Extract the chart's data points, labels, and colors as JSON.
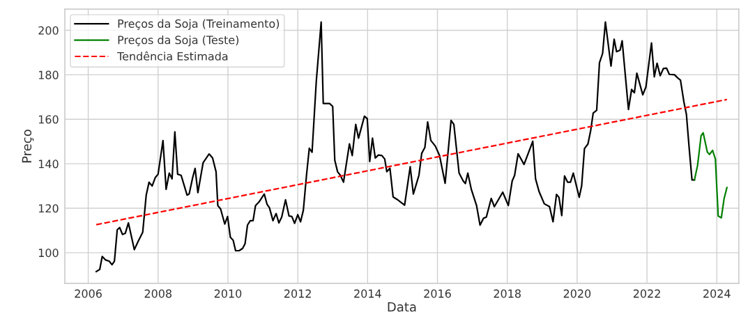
{
  "chart_data": {
    "type": "line",
    "xlabel": "Data",
    "ylabel": "Preço",
    "xlim": [
      2005.33,
      2024.63
    ],
    "ylim": [
      86.2,
      209.5
    ],
    "xticks": [
      2006,
      2008,
      2010,
      2012,
      2014,
      2016,
      2018,
      2020,
      2022,
      2024
    ],
    "yticks": [
      100,
      120,
      140,
      160,
      180,
      200
    ],
    "grid": true,
    "legend": "top left",
    "series": [
      {
        "name": "Preços da Soja (Treinamento)",
        "color": "#000000",
        "line_style": "solid",
        "x": [
          2006.23,
          2006.33,
          2006.4,
          2006.5,
          2006.6,
          2006.68,
          2006.75,
          2006.83,
          2006.9,
          2006.98,
          2007.06,
          2007.15,
          2007.32,
          2007.43,
          2007.56,
          2007.66,
          2007.74,
          2007.83,
          2007.92,
          2008.0,
          2008.14,
          2008.23,
          2008.32,
          2008.4,
          2008.48,
          2008.56,
          2008.66,
          2008.83,
          2008.89,
          2008.99,
          2009.06,
          2009.14,
          2009.29,
          2009.46,
          2009.56,
          2009.66,
          2009.71,
          2009.79,
          2009.91,
          2009.99,
          2010.07,
          2010.15,
          2010.22,
          2010.32,
          2010.42,
          2010.49,
          2010.56,
          2010.64,
          2010.72,
          2010.79,
          2010.89,
          2011.04,
          2011.12,
          2011.19,
          2011.29,
          2011.38,
          2011.46,
          2011.54,
          2011.65,
          2011.75,
          2011.83,
          2011.91,
          2012.0,
          2012.08,
          2012.16,
          2012.25,
          2012.33,
          2012.41,
          2012.53,
          2012.67,
          2012.73,
          2012.91,
          2013.0,
          2013.06,
          2013.14,
          2013.22,
          2013.31,
          2013.48,
          2013.56,
          2013.66,
          2013.74,
          2013.91,
          2013.99,
          2014.06,
          2014.14,
          2014.22,
          2014.31,
          2014.41,
          2014.49,
          2014.55,
          2014.64,
          2014.73,
          2014.84,
          2015.06,
          2015.22,
          2015.31,
          2015.47,
          2015.55,
          2015.64,
          2015.72,
          2015.81,
          2015.94,
          2016.06,
          2016.22,
          2016.39,
          2016.47,
          2016.62,
          2016.74,
          2016.8,
          2016.87,
          2016.97,
          2017.12,
          2017.22,
          2017.32,
          2017.4,
          2017.54,
          2017.63,
          2017.87,
          2018.03,
          2018.14,
          2018.21,
          2018.31,
          2018.48,
          2018.73,
          2018.81,
          2018.91,
          2019.06,
          2019.21,
          2019.31,
          2019.41,
          2019.48,
          2019.56,
          2019.64,
          2019.73,
          2019.81,
          2019.89,
          2020.06,
          2020.13,
          2020.21,
          2020.31,
          2020.39,
          2020.46,
          2020.56,
          2020.64,
          2020.73,
          2020.81,
          2020.97,
          2021.06,
          2021.13,
          2021.23,
          2021.29,
          2021.47,
          2021.56,
          2021.64,
          2021.71,
          2021.88,
          2021.97,
          2022.13,
          2022.21,
          2022.29,
          2022.38,
          2022.47,
          2022.56,
          2022.64,
          2022.79,
          2022.88,
          2022.96,
          2023.06,
          2023.13,
          2023.21,
          2023.29,
          2023.36
        ],
        "values": [
          91.5,
          92.5,
          98.3,
          96.7,
          96.2,
          94.6,
          96.2,
          110.3,
          111.3,
          108.2,
          108.7,
          113.4,
          101.4,
          105.1,
          109.2,
          125.9,
          131.7,
          130.0,
          133.8,
          135.3,
          150.4,
          128.5,
          135.8,
          133.2,
          154.3,
          135.3,
          134.8,
          125.9,
          126.4,
          133.8,
          137.9,
          127.0,
          140.5,
          144.4,
          142.6,
          136.4,
          121.2,
          119.7,
          112.9,
          116.3,
          106.9,
          105.6,
          100.9,
          100.9,
          101.9,
          104.0,
          112.4,
          114.4,
          114.4,
          121.2,
          122.8,
          126.4,
          121.8,
          120.2,
          114.4,
          117.6,
          113.4,
          116.0,
          123.8,
          116.5,
          116.3,
          113.2,
          117.1,
          113.9,
          119.1,
          134.8,
          147.0,
          145.2,
          177.0,
          203.7,
          167.1,
          167.1,
          165.8,
          141.6,
          136.4,
          134.8,
          131.7,
          148.9,
          143.7,
          157.7,
          151.5,
          161.4,
          160.3,
          141.0,
          151.5,
          142.6,
          143.9,
          143.7,
          142.1,
          136.4,
          138.0,
          125.1,
          124.0,
          121.4,
          138.7,
          126.4,
          134.8,
          144.7,
          147.3,
          158.8,
          150.5,
          147.9,
          143.7,
          131.2,
          159.5,
          157.7,
          135.8,
          132.2,
          131.1,
          135.8,
          128.5,
          121.2,
          112.4,
          115.5,
          116.0,
          124.4,
          120.7,
          127.2,
          121.2,
          132.2,
          134.8,
          144.5,
          139.7,
          150.1,
          133.2,
          127.5,
          122.0,
          120.7,
          113.9,
          126.2,
          124.9,
          116.7,
          134.5,
          131.7,
          131.7,
          135.8,
          124.9,
          130.1,
          146.8,
          148.9,
          155.1,
          162.8,
          164.0,
          185.4,
          189.6,
          203.7,
          183.9,
          196.0,
          190.4,
          191.1,
          195.3,
          164.4,
          173.4,
          171.9,
          180.7,
          171.0,
          174.5,
          194.3,
          179.1,
          185.2,
          179.6,
          182.8,
          183.0,
          180.2,
          180.0,
          178.6,
          177.6,
          167.6,
          162.2,
          146.8,
          132.7,
          132.7
        ]
      },
      {
        "name": "Preços da Soja (Teste)",
        "color": "#008000",
        "line_style": "solid",
        "x": [
          2023.36,
          2023.45,
          2023.55,
          2023.61,
          2023.73,
          2023.79,
          2023.88,
          2023.96,
          2024.04,
          2024.13,
          2024.21,
          2024.29
        ],
        "values": [
          132.7,
          139.3,
          152.6,
          153.9,
          145.2,
          144.2,
          146.0,
          142.1,
          116.5,
          115.7,
          124.4,
          129.3
        ]
      },
      {
        "name": "Tendência Estimada",
        "color": "#ff0000",
        "line_style": "dashed",
        "x": [
          2006.23,
          2024.29
        ],
        "values": [
          112.6,
          168.9
        ]
      }
    ]
  }
}
